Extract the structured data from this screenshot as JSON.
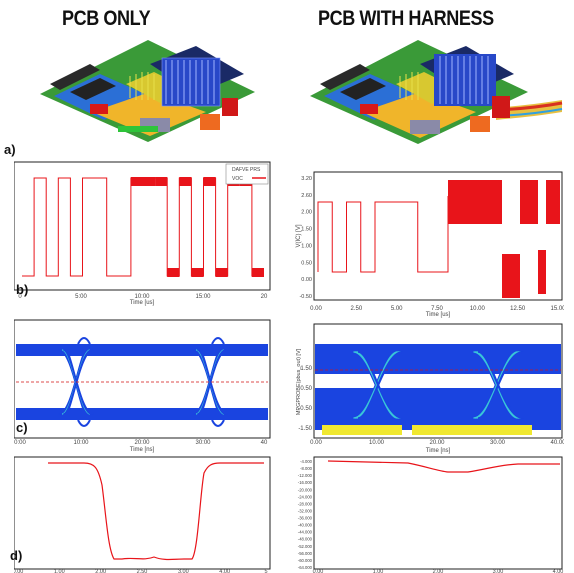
{
  "titles": {
    "left": "PCB ONLY",
    "right": "PCB WITH HARNESS"
  },
  "row_labels": {
    "a": "a)",
    "b": "b)",
    "c": "c)",
    "d": "d)"
  },
  "colors": {
    "signal_red": "#e8141a",
    "eye_blue": "#1a44e0",
    "eye_cyan": "#39c6d8",
    "eye_yellow": "#f0e830",
    "midline_red": "#d21414"
  },
  "chart_data": [
    {
      "id": "b-left",
      "type": "line",
      "legend": [
        "DAFVE PRS",
        "VOC"
      ],
      "xlabel": "Time [us]",
      "xticks": [
        "0",
        "5:00",
        "10:00",
        "15:00",
        "20"
      ],
      "bits": [
        0,
        1,
        0,
        1,
        0,
        1,
        1,
        0,
        0,
        1,
        1,
        1,
        0,
        1,
        0,
        1,
        0,
        1,
        1,
        0
      ],
      "high_band_from_bit": 9
    },
    {
      "id": "b-right",
      "type": "line",
      "ylabel": "V(IC) [V]",
      "xlabel": "Time [us]",
      "yticks": [
        "3.20",
        "2.60",
        "2.00",
        "1.50",
        "1.00",
        "0.50",
        "0.00",
        "-0.50"
      ],
      "xticks": [
        "0.00",
        "2.50",
        "5.00",
        "7.50",
        "10.00",
        "12.50",
        "15.00"
      ]
    },
    {
      "id": "c-left",
      "type": "line",
      "xlabel": "Time [ns]",
      "xticks": [
        "0:00",
        "10:00",
        "20:00",
        "30:00",
        "40"
      ]
    },
    {
      "id": "c-right",
      "type": "line",
      "ylabel": "MPGPROBE(pbus_out) [V]",
      "xlabel": "Time [ns]",
      "yticks": [
        "1.50",
        "0.50",
        "-0.50",
        "-1.50"
      ],
      "xticks": [
        "0.00",
        "10.00",
        "20.00",
        "30.00",
        "40.00"
      ]
    },
    {
      "id": "d-left",
      "type": "line",
      "xticks": [
        "0.00",
        "1.00",
        "2.00",
        "2.50",
        "3.00",
        "4.00",
        "5"
      ]
    },
    {
      "id": "d-right",
      "type": "line",
      "yticks": [
        "-4.000",
        "-8.000",
        "-12.000",
        "-16.000",
        "-20.000",
        "-24.000",
        "-28.000",
        "-32.000",
        "-36.000",
        "-40.000",
        "-44.000",
        "-48.000",
        "-52.000",
        "-56.000",
        "-60.000",
        "-64.000"
      ],
      "xticks": [
        "0.00",
        "1.00",
        "2.00",
        "3.00",
        "4.00"
      ]
    }
  ]
}
